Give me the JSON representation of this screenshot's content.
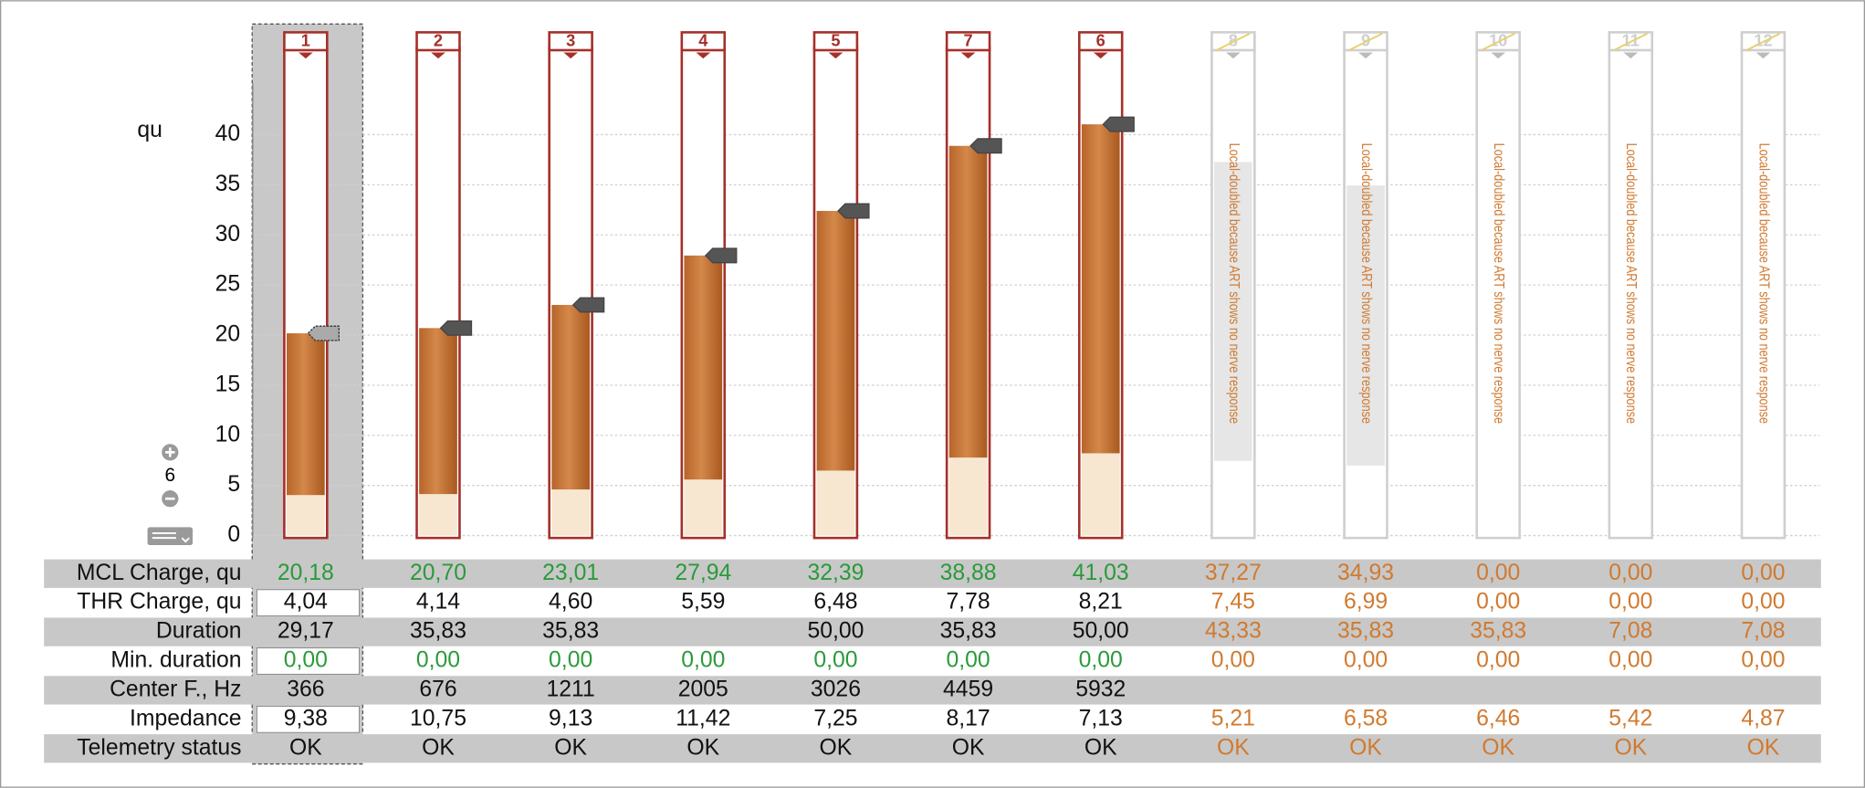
{
  "chart_data": {
    "type": "bar",
    "y_label": "qu",
    "ylim": [
      0,
      40
    ],
    "yticks": [
      0,
      5,
      10,
      15,
      20,
      25,
      30,
      35,
      40
    ],
    "grid": true,
    "categories": [
      "1",
      "2",
      "3",
      "4",
      "5",
      "7",
      "6",
      "8",
      "9",
      "10",
      "11",
      "12"
    ],
    "enabled": [
      true,
      true,
      true,
      true,
      true,
      true,
      true,
      false,
      false,
      false,
      false,
      false
    ],
    "notes": [
      null,
      null,
      null,
      null,
      null,
      null,
      null,
      "Local-doubled because ART shows no nerve response",
      "Local-doubled because ART shows no nerve response",
      "Local-doubled because ART shows no nerve response",
      "Local-doubled because ART shows no nerve response",
      "Local-doubled because ART shows no nerve response"
    ],
    "zoom": "6",
    "series": [
      {
        "name": "MCL Charge, qu",
        "color": "#c47434",
        "values": [
          20.18,
          20.7,
          23.01,
          27.94,
          32.39,
          38.88,
          41.03,
          37.27,
          34.93,
          0.0,
          0.0,
          0.0
        ],
        "value_labels": [
          "20,18",
          "20,70",
          "23,01",
          "27,94",
          "32,39",
          "38,88",
          "41,03",
          "37,27",
          "34,93",
          "0,00",
          "0,00",
          "0,00"
        ]
      },
      {
        "name": "THR Charge, qu",
        "color": "#f7e7d0",
        "values": [
          4.04,
          4.14,
          4.6,
          5.59,
          6.48,
          7.78,
          8.21,
          7.45,
          6.99,
          0.0,
          0.0,
          0.0
        ],
        "value_labels": [
          "4,04",
          "4,14",
          "4,60",
          "5,59",
          "6,48",
          "7,78",
          "8,21",
          "7,45",
          "6,99",
          "0,00",
          "0,00",
          "0,00"
        ]
      }
    ]
  },
  "table": {
    "rows": [
      {
        "label": "Duration",
        "cells": [
          "29,17",
          "35,83",
          "35,83",
          null,
          "50,00",
          "35,83",
          "50,00",
          "43,33",
          "35,83",
          "35,83",
          "7,08",
          "7,08"
        ]
      },
      {
        "label": "Min. duration",
        "cells": [
          "0,00",
          "0,00",
          "0,00",
          "0,00",
          "0,00",
          "0,00",
          "0,00",
          "0,00",
          "0,00",
          "0,00",
          "0,00",
          "0,00"
        ]
      },
      {
        "label": "Center F., Hz",
        "cells": [
          "366",
          "676",
          "1211",
          "2005",
          "3026",
          "4459",
          "5932",
          null,
          null,
          null,
          null,
          null
        ]
      },
      {
        "label": "Impedance",
        "cells": [
          "9,38",
          "10,75",
          "9,13",
          "11,42",
          "7,25",
          "8,17",
          "7,13",
          "5,21",
          "6,58",
          "6,46",
          "5,42",
          "4,87"
        ]
      },
      {
        "label": "Telemetry status",
        "cells": [
          "OK",
          "OK",
          "OK",
          "OK",
          "OK",
          "OK",
          "OK",
          "OK",
          "OK",
          "OK",
          "OK",
          "OK"
        ]
      }
    ]
  }
}
